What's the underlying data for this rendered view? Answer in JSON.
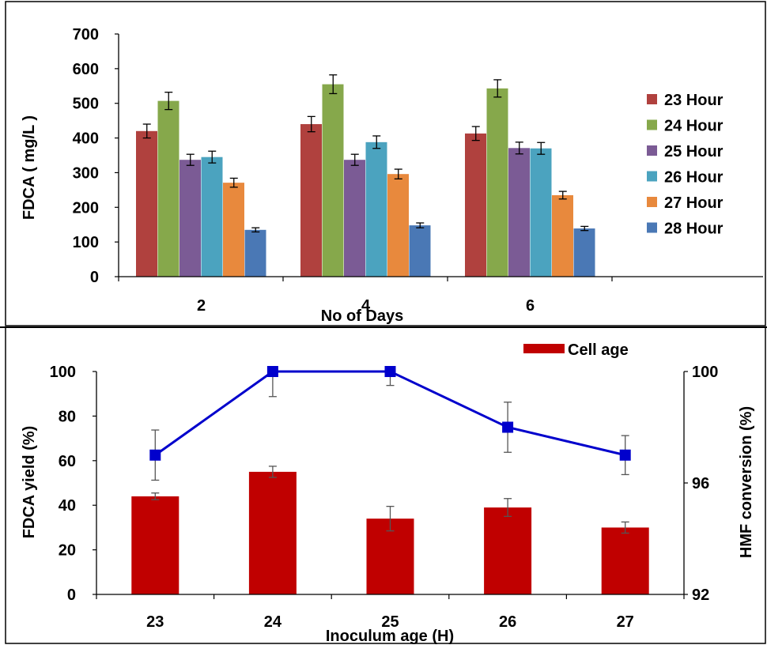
{
  "chart_data": [
    {
      "type": "bar",
      "title": "",
      "xlabel": "No of Days",
      "ylabel": "FDCA ( mg/L )",
      "ylim": [
        0,
        700
      ],
      "yticks": [
        "0",
        "100",
        "200",
        "300",
        "400",
        "500",
        "600",
        "700"
      ],
      "categories": [
        "2",
        "4",
        "6"
      ],
      "legend_position": "right",
      "series": [
        {
          "name": "23 Hour",
          "color": "#b0413e",
          "values": [
            420,
            440,
            413
          ],
          "errors": [
            20,
            22,
            20
          ]
        },
        {
          "name": "24 Hour",
          "color": "#86a84b",
          "values": [
            507,
            555,
            543
          ],
          "errors": [
            25,
            27,
            25
          ]
        },
        {
          "name": "25 Hour",
          "color": "#7b5b95",
          "values": [
            337,
            337,
            371
          ],
          "errors": [
            16,
            16,
            17
          ]
        },
        {
          "name": "26 Hour",
          "color": "#4ba3bf",
          "values": [
            345,
            388,
            370
          ],
          "errors": [
            17,
            18,
            17
          ]
        },
        {
          "name": "27 Hour",
          "color": "#e8893d",
          "values": [
            271,
            296,
            235
          ],
          "errors": [
            13,
            14,
            11
          ]
        },
        {
          "name": "28 Hour",
          "color": "#4a78b5",
          "values": [
            135,
            148,
            139
          ],
          "errors": [
            6,
            7,
            6
          ]
        }
      ]
    },
    {
      "type": "bar",
      "title": "",
      "xlabel": "Inoculum age (H)",
      "ylabel": "FDCA yield (%)",
      "y2label": "HMF conversion (%)",
      "ylim": [
        0,
        100
      ],
      "y2lim": [
        92,
        100
      ],
      "yticks": [
        "0",
        "20",
        "40",
        "60",
        "80",
        "100"
      ],
      "y2ticks": [
        "92",
        "96",
        "100"
      ],
      "categories": [
        "23",
        "24",
        "25",
        "26",
        "27"
      ],
      "legend_position": "top-right",
      "series": [
        {
          "name": "Cell age",
          "type": "bar",
          "axis": "left",
          "color": "#c00000",
          "values": [
            44,
            55,
            34,
            39,
            30
          ],
          "errors": [
            1.5,
            2.5,
            5.5,
            4,
            2.5
          ]
        },
        {
          "type": "line",
          "axis": "right",
          "color": "#0000cc",
          "values": [
            97,
            100,
            100,
            98,
            97
          ],
          "errors": [
            0.9,
            0.9,
            0.5,
            0.9,
            0.7
          ]
        }
      ]
    }
  ]
}
